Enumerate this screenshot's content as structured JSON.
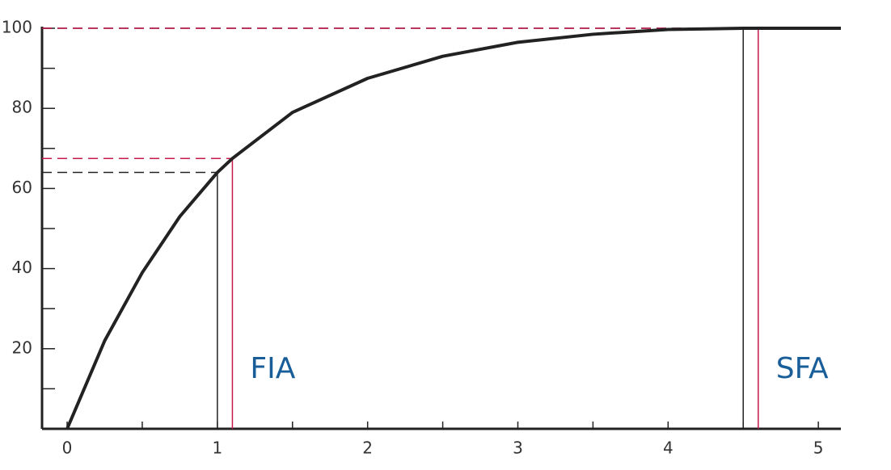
{
  "chart_data": {
    "type": "line",
    "x": [
      0,
      0.25,
      0.5,
      0.75,
      1,
      1.1,
      1.5,
      2,
      2.5,
      3,
      3.5,
      4,
      4.5,
      5.15
    ],
    "values": [
      0,
      22,
      39,
      53,
      64,
      67.5,
      79,
      87.5,
      93,
      96.5,
      98.5,
      99.7,
      100,
      100
    ],
    "color": "#222222",
    "xlim": [
      -0.167,
      5.15
    ],
    "ylim": [
      0,
      100
    ],
    "xticks": [
      0,
      1,
      2,
      3,
      4,
      5
    ],
    "xticks_minor": [
      0.5,
      1.5,
      2.5,
      3.5,
      4.5
    ],
    "yticks": [
      20,
      40,
      60,
      80,
      100
    ],
    "yticks_minor": [
      10,
      30,
      50,
      70,
      90
    ],
    "groups": [
      {
        "label": "FIA",
        "markers": [
          {
            "x": 1,
            "y": 64,
            "color": "#222222"
          },
          {
            "x": 1.1,
            "y": 67.5,
            "color": "#c8194b"
          }
        ]
      },
      {
        "label": "SFA",
        "markers": [
          {
            "x": 4.5,
            "y": 100,
            "color": "#222222"
          },
          {
            "x": 4.6,
            "y": 100,
            "color": "#c8194b"
          }
        ]
      }
    ]
  }
}
